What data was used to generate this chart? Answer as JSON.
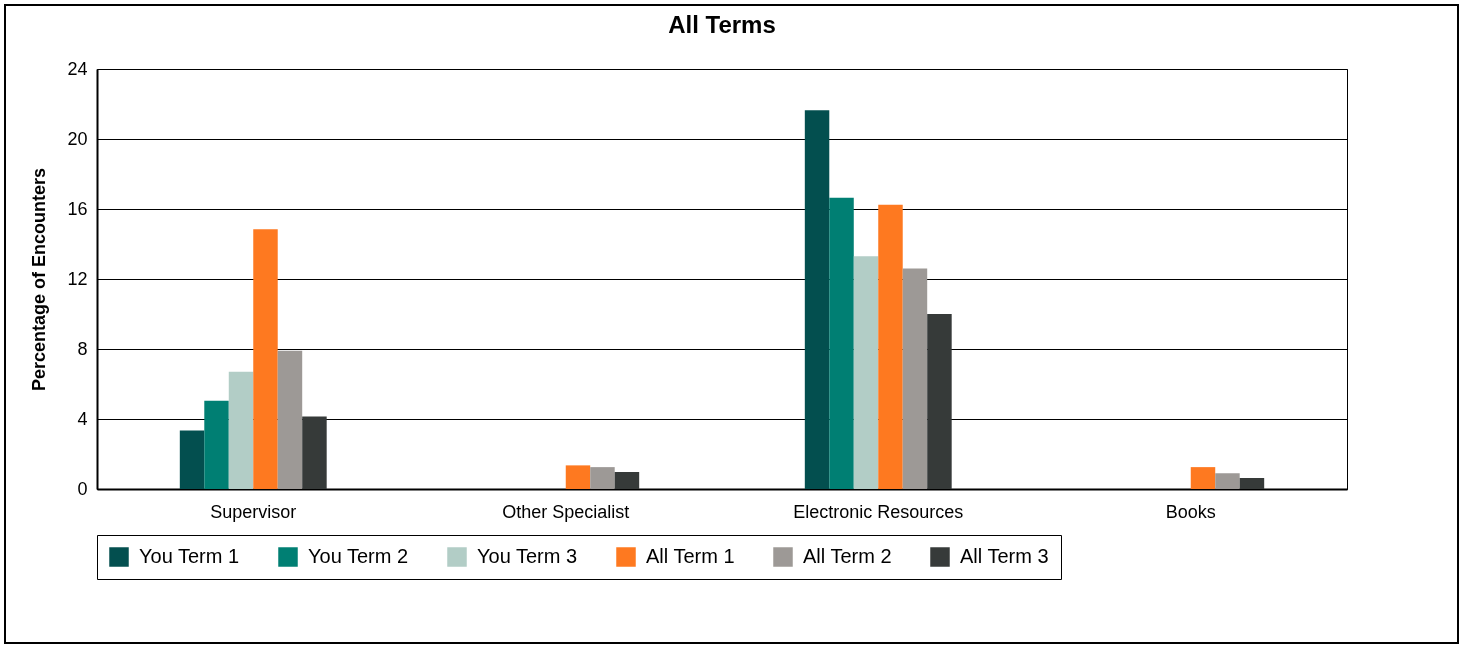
{
  "chart_data": {
    "type": "bar",
    "title": "All Terms",
    "ylabel": "Percentage of Encounters",
    "categories": [
      "Supervisor",
      "Other Specialist",
      "Electronic Resources",
      "Books"
    ],
    "series": [
      {
        "name": "You Term 1",
        "color": "#034f4f",
        "values": [
          3.35,
          0,
          21.65,
          0
        ]
      },
      {
        "name": "You Term 2",
        "color": "#007f73",
        "values": [
          5.05,
          0,
          16.65,
          0
        ]
      },
      {
        "name": "You Term 3",
        "color": "#b2cdc6",
        "values": [
          6.7,
          0,
          13.3,
          0
        ]
      },
      {
        "name": "All Term 1",
        "color": "#fe7920",
        "values": [
          14.85,
          1.35,
          16.25,
          1.25
        ]
      },
      {
        "name": "All Term 2",
        "color": "#9d9996",
        "values": [
          7.9,
          1.25,
          12.6,
          0.9
        ]
      },
      {
        "name": "All Term 3",
        "color": "#363a39",
        "values": [
          4.15,
          0.97,
          10.0,
          0.63
        ]
      }
    ],
    "ylim": [
      0,
      24
    ],
    "yticks": [
      0,
      4,
      8,
      12,
      16,
      20,
      24
    ],
    "grid": "y",
    "legend": "bottom"
  }
}
